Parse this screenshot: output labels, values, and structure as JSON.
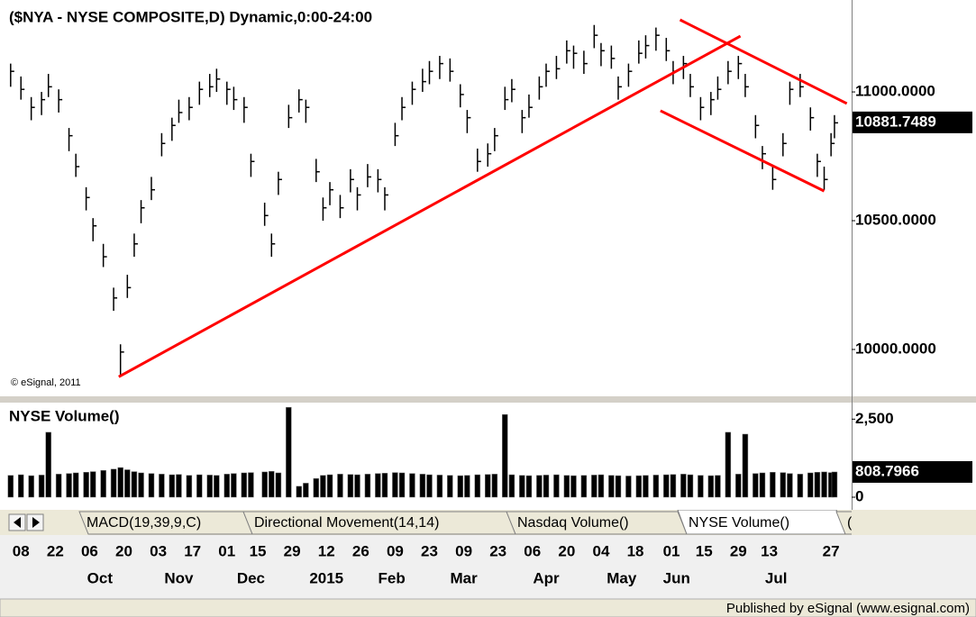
{
  "chart_data": [
    {
      "type": "ohlc",
      "title": "($NYA - NYSE COMPOSITE,D) Dynamic,0:00-24:00",
      "watermark": "© eSignal, 2011",
      "color": "#000000",
      "xlim": [
        0,
        246
      ],
      "ylim": [
        9825,
        11329
      ],
      "yticks": [
        {
          "value": 11000,
          "label": "11000.0000"
        },
        {
          "value": 10500,
          "label": "10500.0000"
        },
        {
          "value": 10000,
          "label": "10000.0000"
        }
      ],
      "last_value": 10881.7489,
      "x": [
        1,
        4,
        7,
        10,
        12,
        15,
        18,
        20,
        23,
        25,
        28,
        31,
        33,
        35,
        37,
        39,
        42,
        45,
        48,
        50,
        53,
        56,
        59,
        61,
        64,
        66,
        69,
        71,
        75,
        77,
        79,
        82,
        85,
        87,
        90,
        92,
        94,
        97,
        100,
        102,
        105,
        108,
        110,
        113,
        115,
        118,
        121,
        123,
        126,
        129,
        132,
        134,
        137,
        140,
        142,
        145,
        147,
        150,
        152,
        155,
        157,
        160,
        163,
        165,
        168,
        171,
        173,
        176,
        178,
        181,
        184,
        186,
        189,
        192,
        194,
        197,
        199,
        202,
        205,
        207,
        210,
        213,
        215,
        218,
        220,
        223,
        226,
        228,
        231,
        234,
        236,
        238,
        240,
        241
      ],
      "high": [
        11110,
        11060,
        10980,
        11000,
        11070,
        11010,
        10860,
        10760,
        10630,
        10510,
        10410,
        10240,
        10020,
        10290,
        10450,
        10580,
        10670,
        10840,
        10900,
        10970,
        10980,
        11040,
        11070,
        11090,
        11040,
        11020,
        10980,
        10760,
        10570,
        10450,
        10690,
        10950,
        11010,
        10970,
        10740,
        10590,
        10650,
        10600,
        10700,
        10630,
        10720,
        10700,
        10630,
        10880,
        10980,
        11040,
        11090,
        11120,
        11140,
        11130,
        11030,
        10930,
        10780,
        10800,
        10860,
        11020,
        11050,
        10930,
        10990,
        11060,
        11110,
        11140,
        11200,
        11180,
        11160,
        11260,
        11190,
        11180,
        11060,
        11110,
        11200,
        11220,
        11250,
        11210,
        11120,
        11140,
        11070,
        10980,
        11000,
        11060,
        11120,
        11140,
        11070,
        10910,
        10790,
        10710,
        10840,
        11040,
        11070,
        10940,
        10760,
        10710,
        10840,
        10910
      ],
      "low": [
        11020,
        10970,
        10890,
        10910,
        10980,
        10920,
        10770,
        10670,
        10540,
        10420,
        10320,
        10150,
        9900,
        10200,
        10360,
        10490,
        10580,
        10750,
        10810,
        10880,
        10890,
        10950,
        10980,
        11000,
        10950,
        10930,
        10880,
        10670,
        10480,
        10360,
        10600,
        10860,
        10920,
        10880,
        10650,
        10500,
        10560,
        10510,
        10610,
        10540,
        10630,
        10610,
        10540,
        10790,
        10890,
        10950,
        11000,
        11030,
        11050,
        11040,
        10940,
        10840,
        10690,
        10710,
        10770,
        10930,
        10960,
        10840,
        10900,
        10970,
        11020,
        11050,
        11110,
        11090,
        11070,
        11170,
        11100,
        11090,
        10970,
        11020,
        11110,
        11130,
        11160,
        11120,
        11030,
        11050,
        10980,
        10890,
        10910,
        10970,
        11030,
        11050,
        10980,
        10820,
        10700,
        10620,
        10750,
        10950,
        10980,
        10850,
        10670,
        10620,
        10750,
        10820
      ],
      "close": [
        11080,
        11010,
        10940,
        10970,
        11020,
        10970,
        10830,
        10710,
        10590,
        10480,
        10360,
        10200,
        9990,
        10240,
        10410,
        10550,
        10620,
        10800,
        10870,
        10920,
        10940,
        11010,
        11020,
        11050,
        11010,
        10970,
        10940,
        10730,
        10520,
        10410,
        10660,
        10900,
        10970,
        10940,
        10690,
        10550,
        10620,
        10550,
        10660,
        10600,
        10670,
        10660,
        10600,
        10830,
        10940,
        11010,
        11040,
        11080,
        11110,
        11080,
        10990,
        10900,
        10730,
        10760,
        10830,
        10970,
        11010,
        10900,
        10940,
        11020,
        11080,
        11090,
        11160,
        11150,
        11110,
        11220,
        11160,
        11130,
        11020,
        11080,
        11150,
        11180,
        11220,
        11160,
        11080,
        11110,
        11020,
        10940,
        10970,
        11010,
        11080,
        11110,
        11020,
        10870,
        10760,
        10660,
        10800,
        11010,
        11020,
        10900,
        10730,
        10660,
        10800,
        10880
      ],
      "trendlines": [
        {
          "color": "#ff0000",
          "x": [
            32.5,
            213.6
          ],
          "y": [
            9894,
            11217
          ]
        },
        {
          "color": "#ff0000",
          "x": [
            196,
            244.6
          ],
          "y": [
            11280,
            10955
          ]
        },
        {
          "color": "#ff0000",
          "x": [
            190.3,
            238
          ],
          "y": [
            10927,
            10615
          ]
        }
      ]
    },
    {
      "type": "bar",
      "title": "NYSE Volume()",
      "color": "#000000",
      "xlim": [
        0,
        246
      ],
      "ylim": [
        0,
        3000
      ],
      "yticks": [
        {
          "value": 2500,
          "label": "2,500"
        },
        0
      ],
      "last_value": 808.7966,
      "x": [
        1,
        4,
        7,
        10,
        12,
        15,
        18,
        20,
        23,
        25,
        28,
        31,
        33,
        35,
        37,
        39,
        42,
        45,
        48,
        50,
        53,
        56,
        59,
        61,
        64,
        66,
        69,
        71,
        75,
        77,
        79,
        82,
        85,
        87,
        90,
        92,
        94,
        97,
        100,
        102,
        105,
        108,
        110,
        113,
        115,
        118,
        121,
        123,
        126,
        129,
        132,
        134,
        137,
        140,
        142,
        145,
        147,
        150,
        152,
        155,
        157,
        160,
        163,
        165,
        168,
        171,
        173,
        176,
        178,
        181,
        184,
        186,
        189,
        192,
        194,
        197,
        199,
        202,
        205,
        207,
        210,
        213,
        215,
        218,
        220,
        223,
        226,
        228,
        231,
        234,
        236,
        238,
        240,
        241
      ],
      "values": [
        700,
        720,
        690,
        710,
        2080,
        740,
        760,
        780,
        800,
        820,
        860,
        900,
        950,
        880,
        820,
        780,
        760,
        740,
        720,
        730,
        700,
        720,
        710,
        700,
        740,
        760,
        780,
        790,
        810,
        830,
        780,
        2880,
        350,
        450,
        600,
        700,
        720,
        740,
        730,
        720,
        740,
        760,
        770,
        790,
        780,
        760,
        740,
        720,
        710,
        700,
        690,
        700,
        720,
        730,
        740,
        2650,
        720,
        700,
        690,
        700,
        710,
        720,
        700,
        690,
        700,
        710,
        720,
        700,
        690,
        680,
        690,
        700,
        710,
        720,
        730,
        740,
        720,
        700,
        690,
        700,
        2080,
        740,
        2020,
        760,
        780,
        800,
        790,
        760,
        740,
        780,
        800,
        810,
        790,
        809
      ],
      "xticks": [
        {
          "value": 4,
          "label": "08"
        },
        {
          "value": 14,
          "label": "22"
        },
        {
          "value": 24,
          "label": "06"
        },
        {
          "value": 34,
          "label": "20"
        },
        {
          "value": 44,
          "label": "03"
        },
        {
          "value": 54,
          "label": "17"
        },
        {
          "value": 64,
          "label": "01"
        },
        {
          "value": 73,
          "label": "15"
        },
        {
          "value": 83,
          "label": "29"
        },
        {
          "value": 93,
          "label": "12"
        },
        {
          "value": 103,
          "label": "26"
        },
        {
          "value": 113,
          "label": "09"
        },
        {
          "value": 123,
          "label": "23"
        },
        {
          "value": 133,
          "label": "09"
        },
        {
          "value": 143,
          "label": "23"
        },
        {
          "value": 153,
          "label": "06"
        },
        {
          "value": 163,
          "label": "20"
        },
        {
          "value": 173,
          "label": "04"
        },
        {
          "value": 183,
          "label": "18"
        },
        {
          "value": 193.5,
          "label": "01"
        },
        {
          "value": 203,
          "label": "15"
        },
        {
          "value": 213,
          "label": "29"
        },
        {
          "value": 222,
          "label": "13"
        },
        {
          "value": 240,
          "label": "27"
        }
      ],
      "month_ticks": [
        {
          "value": 27,
          "label": "Oct"
        },
        {
          "value": 50,
          "label": "Nov"
        },
        {
          "value": 71,
          "label": "Dec"
        },
        {
          "value": 93,
          "label": "2015"
        },
        {
          "value": 112,
          "label": "Feb"
        },
        {
          "value": 133,
          "label": "Mar"
        },
        {
          "value": 157,
          "label": "Apr"
        },
        {
          "value": 179,
          "label": "May"
        },
        {
          "value": 195,
          "label": "Jun"
        },
        {
          "value": 224,
          "label": "Jul"
        }
      ]
    }
  ],
  "tabs": [
    "MACD(19,39,9,C)",
    "Directional Movement(14,14)",
    "Nasdaq Volume()",
    "NYSE Volume()",
    "("
  ],
  "footer": "Published by eSignal (www.esignal.com)"
}
